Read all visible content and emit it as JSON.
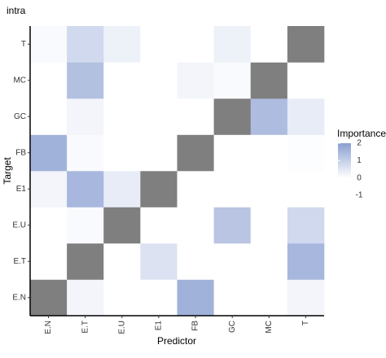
{
  "chart_data": {
    "type": "heatmap",
    "title": "intra",
    "x_label": "Predictor",
    "y_label": "Target",
    "x": [
      "E.N",
      "E.T",
      "E.U",
      "E1",
      "FB",
      "GC",
      "MC",
      "T"
    ],
    "y": [
      "E.N",
      "E.T",
      "E.U",
      "E1",
      "FB",
      "GC",
      "MC",
      "T"
    ],
    "values": [
      [
        null,
        0.2,
        0,
        0,
        1.6,
        0,
        0,
        0.2
      ],
      [
        0,
        null,
        0,
        0.6,
        0,
        0,
        0,
        1.5
      ],
      [
        0,
        0.1,
        null,
        0,
        0,
        1.2,
        0,
        0.8
      ],
      [
        0.2,
        1.5,
        0.4,
        null,
        0,
        0,
        0,
        0
      ],
      [
        1.6,
        0.1,
        0,
        0,
        null,
        0,
        0,
        0.05
      ],
      [
        0,
        0.2,
        0,
        0,
        0,
        null,
        1.4,
        0.4
      ],
      [
        0,
        1.3,
        0,
        0,
        0.2,
        0.1,
        null,
        0
      ],
      [
        0.1,
        0.8,
        0.3,
        0,
        0,
        0.3,
        0,
        null
      ]
    ],
    "na_color": "#7f7f7f",
    "legend_title": "Importance",
    "clim": [
      -1,
      2
    ],
    "cticks": [
      2,
      1,
      0,
      -1
    ],
    "gradient": [
      {
        "value": -1,
        "color": "#ffffff"
      },
      {
        "value": 0,
        "color": "#ffffff"
      },
      {
        "value": 2,
        "color": "#8a9fd1"
      }
    ]
  }
}
